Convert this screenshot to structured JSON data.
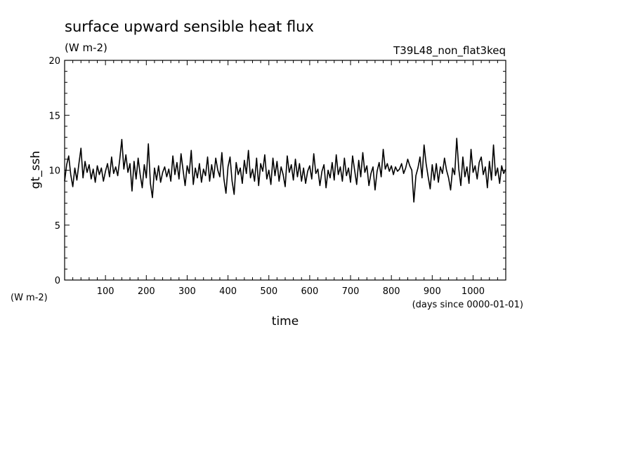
{
  "chart_data": {
    "type": "line",
    "title": "surface upward sensible heat flux",
    "units": "(W m-2)",
    "experiment": "T39L48_non_flat3keq",
    "ylabel": "gt_ssh",
    "y_units": "(W m-2)",
    "xlabel": "time",
    "x_units": "(days since 0000-01-01)",
    "xlim": [
      0,
      1080
    ],
    "ylim": [
      0,
      20
    ],
    "x_ticks": [
      100,
      200,
      300,
      400,
      500,
      600,
      700,
      800,
      900,
      1000
    ],
    "y_ticks": [
      0,
      5,
      10,
      15,
      20
    ],
    "x_tick_labels": [
      "100",
      "200",
      "300",
      "400",
      "500",
      "600",
      "700",
      "800",
      "900",
      "1000"
    ],
    "y_tick_labels": [
      "0",
      "5",
      "10",
      "15",
      "20"
    ],
    "series": [
      {
        "values": [
          [
            0,
            9.0
          ],
          [
            5,
            10.5
          ],
          [
            10,
            11.3
          ],
          [
            15,
            9.6
          ],
          [
            20,
            8.5
          ],
          [
            25,
            10.2
          ],
          [
            30,
            9.1
          ],
          [
            35,
            10.6
          ],
          [
            40,
            12.0
          ],
          [
            45,
            9.3
          ],
          [
            50,
            10.8
          ],
          [
            55,
            9.8
          ],
          [
            60,
            10.5
          ],
          [
            65,
            9.2
          ],
          [
            70,
            10.1
          ],
          [
            75,
            8.9
          ],
          [
            80,
            10.4
          ],
          [
            85,
            9.6
          ],
          [
            90,
            10.2
          ],
          [
            95,
            9.0
          ],
          [
            100,
            9.9
          ],
          [
            105,
            10.6
          ],
          [
            110,
            9.4
          ],
          [
            115,
            11.2
          ],
          [
            120,
            9.7
          ],
          [
            125,
            10.3
          ],
          [
            130,
            9.5
          ],
          [
            135,
            11.0
          ],
          [
            140,
            12.8
          ],
          [
            145,
            10.1
          ],
          [
            150,
            11.4
          ],
          [
            155,
            9.8
          ],
          [
            160,
            10.6
          ],
          [
            165,
            8.1
          ],
          [
            170,
            10.8
          ],
          [
            175,
            9.2
          ],
          [
            180,
            11.1
          ],
          [
            185,
            9.6
          ],
          [
            190,
            8.4
          ],
          [
            195,
            10.5
          ],
          [
            200,
            9.3
          ],
          [
            205,
            12.4
          ],
          [
            210,
            8.8
          ],
          [
            215,
            7.5
          ],
          [
            220,
            10.2
          ],
          [
            225,
            9.1
          ],
          [
            230,
            10.4
          ],
          [
            235,
            8.9
          ],
          [
            240,
            9.8
          ],
          [
            245,
            10.3
          ],
          [
            250,
            9.4
          ],
          [
            255,
            10.1
          ],
          [
            260,
            9.0
          ],
          [
            265,
            11.3
          ],
          [
            270,
            9.6
          ],
          [
            275,
            10.7
          ],
          [
            280,
            9.2
          ],
          [
            285,
            11.5
          ],
          [
            290,
            10.0
          ],
          [
            295,
            8.6
          ],
          [
            300,
            10.4
          ],
          [
            305,
            9.7
          ],
          [
            310,
            11.8
          ],
          [
            315,
            8.7
          ],
          [
            320,
            10.2
          ],
          [
            325,
            9.3
          ],
          [
            330,
            10.6
          ],
          [
            335,
            8.9
          ],
          [
            340,
            10.1
          ],
          [
            345,
            9.5
          ],
          [
            350,
            11.2
          ],
          [
            355,
            9.0
          ],
          [
            360,
            10.5
          ],
          [
            365,
            9.3
          ],
          [
            370,
            11.1
          ],
          [
            375,
            10.0
          ],
          [
            380,
            9.4
          ],
          [
            385,
            11.6
          ],
          [
            390,
            9.2
          ],
          [
            395,
            7.9
          ],
          [
            400,
            10.3
          ],
          [
            405,
            11.2
          ],
          [
            410,
            9.0
          ],
          [
            415,
            7.8
          ],
          [
            420,
            10.7
          ],
          [
            425,
            9.6
          ],
          [
            430,
            10.2
          ],
          [
            435,
            8.8
          ],
          [
            440,
            10.9
          ],
          [
            445,
            9.7
          ],
          [
            450,
            11.8
          ],
          [
            455,
            9.3
          ],
          [
            460,
            10.1
          ],
          [
            465,
            9.0
          ],
          [
            470,
            11.1
          ],
          [
            475,
            8.6
          ],
          [
            480,
            10.6
          ],
          [
            485,
            9.9
          ],
          [
            490,
            11.4
          ],
          [
            495,
            9.2
          ],
          [
            500,
            10.0
          ],
          [
            505,
            8.7
          ],
          [
            510,
            11.1
          ],
          [
            515,
            9.5
          ],
          [
            520,
            10.8
          ],
          [
            525,
            9.0
          ],
          [
            530,
            10.3
          ],
          [
            535,
            9.6
          ],
          [
            540,
            8.5
          ],
          [
            545,
            11.3
          ],
          [
            550,
            9.8
          ],
          [
            555,
            10.5
          ],
          [
            560,
            9.1
          ],
          [
            565,
            11.0
          ],
          [
            570,
            9.4
          ],
          [
            575,
            10.6
          ],
          [
            580,
            9.0
          ],
          [
            585,
            10.2
          ],
          [
            590,
            8.8
          ],
          [
            595,
            9.9
          ],
          [
            600,
            10.4
          ],
          [
            605,
            9.2
          ],
          [
            610,
            11.5
          ],
          [
            615,
            9.7
          ],
          [
            620,
            10.1
          ],
          [
            625,
            8.6
          ],
          [
            630,
            9.9
          ],
          [
            635,
            10.5
          ],
          [
            640,
            8.4
          ],
          [
            645,
            10.0
          ],
          [
            650,
            9.3
          ],
          [
            655,
            10.7
          ],
          [
            660,
            9.1
          ],
          [
            665,
            11.4
          ],
          [
            670,
            9.6
          ],
          [
            675,
            10.3
          ],
          [
            680,
            9.0
          ],
          [
            685,
            11.1
          ],
          [
            690,
            9.5
          ],
          [
            695,
            10.2
          ],
          [
            700,
            8.9
          ],
          [
            705,
            11.3
          ],
          [
            710,
            10.0
          ],
          [
            715,
            8.7
          ],
          [
            720,
            10.9
          ],
          [
            725,
            9.4
          ],
          [
            730,
            11.6
          ],
          [
            735,
            9.8
          ],
          [
            740,
            10.4
          ],
          [
            745,
            8.6
          ],
          [
            750,
            9.7
          ],
          [
            755,
            10.3
          ],
          [
            760,
            8.2
          ],
          [
            765,
            9.9
          ],
          [
            770,
            10.7
          ],
          [
            775,
            9.4
          ],
          [
            780,
            11.9
          ],
          [
            785,
            10.1
          ],
          [
            790,
            10.6
          ],
          [
            795,
            9.9
          ],
          [
            800,
            10.4
          ],
          [
            805,
            9.6
          ],
          [
            810,
            10.3
          ],
          [
            815,
            9.9
          ],
          [
            820,
            10.1
          ],
          [
            825,
            10.6
          ],
          [
            830,
            9.7
          ],
          [
            835,
            10.2
          ],
          [
            840,
            11.0
          ],
          [
            845,
            10.4
          ],
          [
            850,
            10.0
          ],
          [
            855,
            7.1
          ],
          [
            860,
            9.5
          ],
          [
            865,
            10.2
          ],
          [
            870,
            11.2
          ],
          [
            875,
            9.3
          ],
          [
            880,
            12.3
          ],
          [
            885,
            10.6
          ],
          [
            890,
            9.4
          ],
          [
            895,
            8.3
          ],
          [
            900,
            10.5
          ],
          [
            905,
            9.1
          ],
          [
            910,
            10.6
          ],
          [
            915,
            8.9
          ],
          [
            920,
            10.3
          ],
          [
            925,
            9.7
          ],
          [
            930,
            11.1
          ],
          [
            935,
            10.0
          ],
          [
            940,
            9.3
          ],
          [
            945,
            8.2
          ],
          [
            950,
            10.2
          ],
          [
            955,
            9.6
          ],
          [
            960,
            12.9
          ],
          [
            965,
            10.1
          ],
          [
            970,
            8.6
          ],
          [
            975,
            11.2
          ],
          [
            980,
            9.4
          ],
          [
            985,
            10.3
          ],
          [
            990,
            8.8
          ],
          [
            995,
            11.9
          ],
          [
            1000,
            9.8
          ],
          [
            1005,
            10.4
          ],
          [
            1010,
            9.2
          ],
          [
            1015,
            10.7
          ],
          [
            1020,
            11.2
          ],
          [
            1025,
            9.6
          ],
          [
            1030,
            10.3
          ],
          [
            1035,
            8.4
          ],
          [
            1040,
            10.8
          ],
          [
            1045,
            9.1
          ],
          [
            1050,
            12.3
          ],
          [
            1055,
            9.5
          ],
          [
            1060,
            10.2
          ],
          [
            1065,
            8.8
          ],
          [
            1070,
            10.4
          ],
          [
            1075,
            9.7
          ],
          [
            1080,
            10.1
          ]
        ]
      }
    ],
    "grid": false,
    "legend": "none"
  }
}
